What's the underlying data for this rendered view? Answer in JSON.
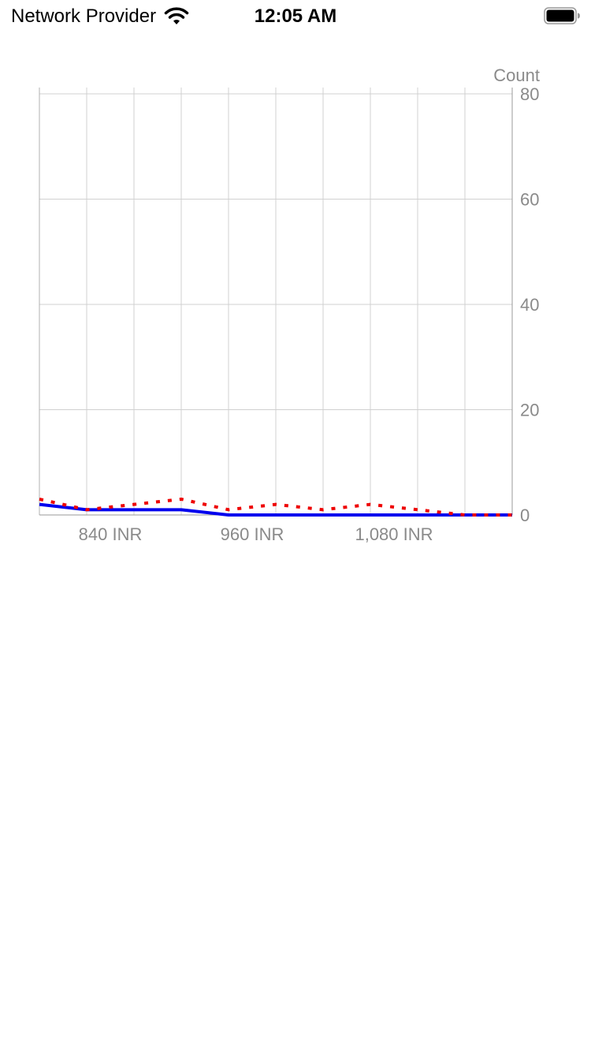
{
  "status_bar": {
    "carrier": "Network Provider",
    "time": "12:05 AM",
    "wifi_icon": "wifi-icon",
    "battery_icon": "battery-icon"
  },
  "chart_data": {
    "type": "line",
    "ylabel": "Count",
    "ylim": [
      0,
      80
    ],
    "yticks": [
      0,
      20,
      40,
      60,
      80
    ],
    "xlim": [
      780,
      1180
    ],
    "xticks": [
      840,
      960,
      1080
    ],
    "xtick_labels": [
      "840 INR",
      "960 INR",
      "1,080 INR"
    ],
    "x_gridlines": [
      780,
      820,
      860,
      900,
      940,
      980,
      1020,
      1060,
      1100,
      1140,
      1180
    ],
    "grid": true,
    "y_axis_position": "right",
    "series": [
      {
        "style": "solid",
        "color": "#0000ee",
        "x": [
          780,
          820,
          860,
          900,
          940,
          980,
          1020,
          1060,
          1100,
          1140,
          1180
        ],
        "values": [
          2,
          1,
          1,
          1,
          0,
          0,
          0,
          0,
          0,
          0,
          0
        ]
      },
      {
        "style": "dotted",
        "color": "#ee0000",
        "x": [
          780,
          820,
          860,
          900,
          940,
          980,
          1020,
          1060,
          1100,
          1140,
          1180
        ],
        "values": [
          3,
          1,
          2,
          3,
          1,
          2,
          1,
          2,
          1,
          0,
          0
        ]
      }
    ]
  }
}
